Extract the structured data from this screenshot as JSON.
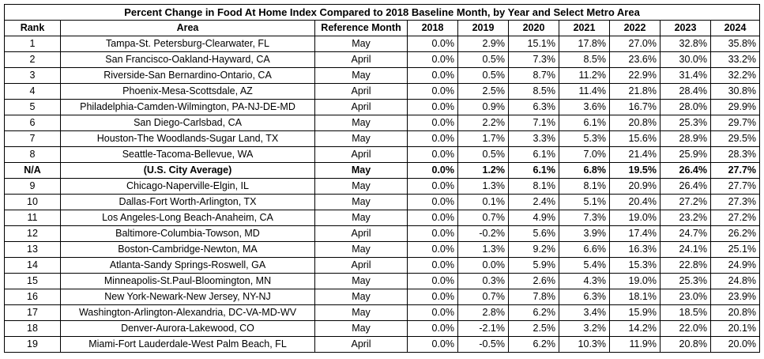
{
  "title": "Percent Change in Food At Home Index Compared to 2018 Baseline Month, by Year and Select Metro Area",
  "headers": [
    "Rank",
    "Area",
    "Reference Month",
    "2018",
    "2019",
    "2020",
    "2021",
    "2022",
    "2023",
    "2024"
  ],
  "rows": [
    {
      "rank": "1",
      "area": "Tampa-St. Petersburg-Clearwater, FL",
      "month": "May",
      "values": [
        "0.0%",
        "2.9%",
        "15.1%",
        "17.8%",
        "27.0%",
        "32.8%",
        "35.8%"
      ],
      "bold": false
    },
    {
      "rank": "2",
      "area": "San Francisco-Oakland-Hayward, CA",
      "month": "April",
      "values": [
        "0.0%",
        "0.5%",
        "7.3%",
        "8.5%",
        "23.6%",
        "30.0%",
        "33.2%"
      ],
      "bold": false
    },
    {
      "rank": "3",
      "area": "Riverside-San Bernardino-Ontario, CA",
      "month": "May",
      "values": [
        "0.0%",
        "0.5%",
        "8.7%",
        "11.2%",
        "22.9%",
        "31.4%",
        "32.2%"
      ],
      "bold": false
    },
    {
      "rank": "4",
      "area": "Phoenix-Mesa-Scottsdale, AZ",
      "month": "April",
      "values": [
        "0.0%",
        "2.5%",
        "8.5%",
        "11.4%",
        "21.8%",
        "28.4%",
        "30.8%"
      ],
      "bold": false
    },
    {
      "rank": "5",
      "area": "Philadelphia-Camden-Wilmington, PA-NJ-DE-MD",
      "month": "April",
      "values": [
        "0.0%",
        "0.9%",
        "6.3%",
        "3.6%",
        "16.7%",
        "28.0%",
        "29.9%"
      ],
      "bold": false
    },
    {
      "rank": "6",
      "area": "San Diego-Carlsbad, CA",
      "month": "May",
      "values": [
        "0.0%",
        "2.2%",
        "7.1%",
        "6.1%",
        "20.8%",
        "25.3%",
        "29.7%"
      ],
      "bold": false
    },
    {
      "rank": "7",
      "area": "Houston-The Woodlands-Sugar Land, TX",
      "month": "May",
      "values": [
        "0.0%",
        "1.7%",
        "3.3%",
        "5.3%",
        "15.6%",
        "28.9%",
        "29.5%"
      ],
      "bold": false
    },
    {
      "rank": "8",
      "area": "Seattle-Tacoma-Bellevue, WA",
      "month": "April",
      "values": [
        "0.0%",
        "0.5%",
        "6.1%",
        "7.0%",
        "21.4%",
        "25.9%",
        "28.3%"
      ],
      "bold": false
    },
    {
      "rank": "N/A",
      "area": "(U.S. City Average)",
      "month": "May",
      "values": [
        "0.0%",
        "1.2%",
        "6.1%",
        "6.8%",
        "19.5%",
        "26.4%",
        "27.7%"
      ],
      "bold": true
    },
    {
      "rank": "9",
      "area": "Chicago-Naperville-Elgin, IL",
      "month": "May",
      "values": [
        "0.0%",
        "1.3%",
        "8.1%",
        "8.1%",
        "20.9%",
        "26.4%",
        "27.7%"
      ],
      "bold": false
    },
    {
      "rank": "10",
      "area": "Dallas-Fort Worth-Arlington, TX",
      "month": "May",
      "values": [
        "0.0%",
        "0.1%",
        "2.4%",
        "5.1%",
        "20.4%",
        "27.2%",
        "27.3%"
      ],
      "bold": false
    },
    {
      "rank": "11",
      "area": "Los Angeles-Long Beach-Anaheim, CA",
      "month": "May",
      "values": [
        "0.0%",
        "0.7%",
        "4.9%",
        "7.3%",
        "19.0%",
        "23.2%",
        "27.2%"
      ],
      "bold": false
    },
    {
      "rank": "12",
      "area": "Baltimore-Columbia-Towson, MD",
      "month": "April",
      "values": [
        "0.0%",
        "-0.2%",
        "5.6%",
        "3.9%",
        "17.4%",
        "24.7%",
        "26.2%"
      ],
      "bold": false
    },
    {
      "rank": "13",
      "area": "Boston-Cambridge-Newton, MA",
      "month": "May",
      "values": [
        "0.0%",
        "1.3%",
        "9.2%",
        "6.6%",
        "16.3%",
        "24.1%",
        "25.1%"
      ],
      "bold": false
    },
    {
      "rank": "14",
      "area": "Atlanta-Sandy Springs-Roswell, GA",
      "month": "April",
      "values": [
        "0.0%",
        "0.0%",
        "5.9%",
        "5.4%",
        "15.3%",
        "22.8%",
        "24.9%"
      ],
      "bold": false
    },
    {
      "rank": "15",
      "area": "Minneapolis-St.Paul-Bloomington, MN",
      "month": "May",
      "values": [
        "0.0%",
        "0.3%",
        "2.6%",
        "4.3%",
        "19.0%",
        "25.3%",
        "24.8%"
      ],
      "bold": false
    },
    {
      "rank": "16",
      "area": "New York-Newark-New Jersey, NY-NJ",
      "month": "May",
      "values": [
        "0.0%",
        "0.7%",
        "7.8%",
        "6.3%",
        "18.1%",
        "23.0%",
        "23.9%"
      ],
      "bold": false
    },
    {
      "rank": "17",
      "area": "Washington-Arlington-Alexandria, DC-VA-MD-WV",
      "month": "May",
      "values": [
        "0.0%",
        "2.8%",
        "6.2%",
        "3.4%",
        "15.9%",
        "18.5%",
        "20.8%"
      ],
      "bold": false
    },
    {
      "rank": "18",
      "area": "Denver-Aurora-Lakewood, CO",
      "month": "May",
      "values": [
        "0.0%",
        "-2.1%",
        "2.5%",
        "3.2%",
        "14.2%",
        "22.0%",
        "20.1%"
      ],
      "bold": false
    },
    {
      "rank": "19",
      "area": "Miami-Fort Lauderdale-West Palm Beach, FL",
      "month": "April",
      "values": [
        "0.0%",
        "-0.5%",
        "6.2%",
        "10.3%",
        "11.9%",
        "20.8%",
        "20.0%"
      ],
      "bold": false
    }
  ]
}
